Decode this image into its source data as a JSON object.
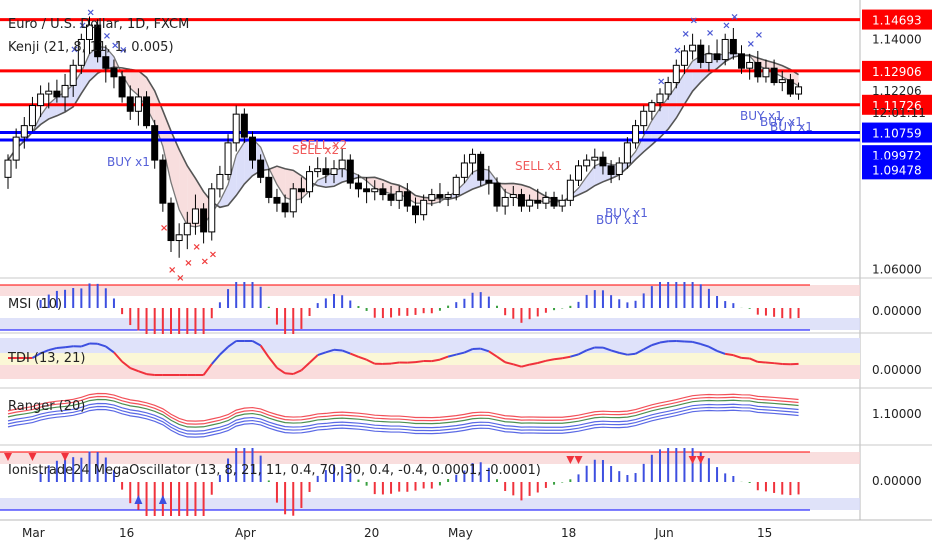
{
  "header": {
    "symbol": "Euro / U.S. Dollar, 1D, FXCM",
    "indicator": "Kenji (21, 8, 11, 1, 0.005)"
  },
  "colors": {
    "bull": "#ffffff",
    "bear": "#000000",
    "red_line": "#ff0000",
    "blue_line": "#0000ff",
    "grey_line": "#787878",
    "green_line": "#2e7d32",
    "cross_blue": "#4b58d4",
    "cross_red": "#ef3b3b",
    "cloud_blue": "#cfd3f7",
    "cloud_red": "#f5d3d3",
    "panel_red": "#f8d6d6",
    "panel_blue": "#d7dbf8",
    "macd_blue": "#3d4fe0",
    "macd_red": "#f0323c",
    "macd_green": "#3aa041"
  },
  "price_axis": {
    "ticks": [
      "1.14000",
      "1.12206",
      "1.06000"
    ],
    "countdown": "12:01:11",
    "levels": [
      {
        "label": "1.14693",
        "color": "red"
      },
      {
        "label": "1.12906",
        "color": "red"
      },
      {
        "label": "1.11726",
        "color": "red"
      },
      {
        "label": "1.10759",
        "color": "blue"
      },
      {
        "label": "1.09972",
        "color": "blue"
      },
      {
        "label": "1.09478",
        "color": "blue"
      }
    ]
  },
  "x_axis": {
    "labels": [
      "Mar",
      "16",
      "Apr",
      "20",
      "May",
      "18",
      "Jun",
      "15"
    ]
  },
  "panels": [
    {
      "title": "MSI (10)",
      "tick": "0.00000"
    },
    {
      "title": "TDI (13, 21)",
      "tick": "0.00000"
    },
    {
      "title": "Ranger (20)",
      "tick": "1.10000"
    },
    {
      "title": "Ionistrade24 MegaOscillator (13, 8, 21, 11, 0.4, 70, 30, 0.4, -0.4, 0.0001, -0.0001)",
      "tick": "0.00000"
    }
  ],
  "signals": [
    "SELL x2",
    "SELL x2",
    "BUY x1",
    "SELL x1",
    "BUY x1",
    "BUY x1",
    "BUY x1",
    "BUY x1",
    "BUY x1"
  ],
  "chart_data": {
    "type": "candlestick",
    "title": "Euro / U.S. Dollar, 1D, FXCM",
    "y_range": [
      1.058,
      1.152
    ],
    "levels": [
      1.14693,
      1.12906,
      1.11726,
      1.10759,
      1.09972,
      1.09478
    ],
    "ohlc": [
      [
        1.092,
        1.1,
        1.088,
        1.098
      ],
      [
        1.098,
        1.109,
        1.095,
        1.106
      ],
      [
        1.106,
        1.113,
        1.102,
        1.11
      ],
      [
        1.11,
        1.12,
        1.108,
        1.117
      ],
      [
        1.117,
        1.124,
        1.113,
        1.121
      ],
      [
        1.121,
        1.125,
        1.116,
        1.122
      ],
      [
        1.122,
        1.126,
        1.118,
        1.12
      ],
      [
        1.12,
        1.128,
        1.115,
        1.124
      ],
      [
        1.124,
        1.133,
        1.12,
        1.131
      ],
      [
        1.131,
        1.142,
        1.128,
        1.14
      ],
      [
        1.14,
        1.148,
        1.135,
        1.145
      ],
      [
        1.145,
        1.147,
        1.132,
        1.134
      ],
      [
        1.134,
        1.138,
        1.125,
        1.13
      ],
      [
        1.13,
        1.133,
        1.123,
        1.127
      ],
      [
        1.127,
        1.129,
        1.118,
        1.12
      ],
      [
        1.12,
        1.124,
        1.112,
        1.115
      ],
      [
        1.115,
        1.123,
        1.11,
        1.12
      ],
      [
        1.12,
        1.122,
        1.109,
        1.11
      ],
      [
        1.11,
        1.112,
        1.095,
        1.098
      ],
      [
        1.098,
        1.1,
        1.08,
        1.083
      ],
      [
        1.083,
        1.085,
        1.066,
        1.07
      ],
      [
        1.07,
        1.076,
        1.064,
        1.072
      ],
      [
        1.072,
        1.08,
        1.067,
        1.076
      ],
      [
        1.076,
        1.086,
        1.072,
        1.081
      ],
      [
        1.081,
        1.083,
        1.069,
        1.073
      ],
      [
        1.073,
        1.09,
        1.07,
        1.088
      ],
      [
        1.088,
        1.096,
        1.085,
        1.093
      ],
      [
        1.093,
        1.107,
        1.091,
        1.104
      ],
      [
        1.104,
        1.117,
        1.101,
        1.114
      ],
      [
        1.114,
        1.116,
        1.104,
        1.106
      ],
      [
        1.106,
        1.108,
        1.095,
        1.098
      ],
      [
        1.098,
        1.1,
        1.09,
        1.092
      ],
      [
        1.092,
        1.095,
        1.083,
        1.085
      ],
      [
        1.085,
        1.088,
        1.08,
        1.083
      ],
      [
        1.083,
        1.086,
        1.078,
        1.08
      ],
      [
        1.08,
        1.09,
        1.078,
        1.088
      ],
      [
        1.088,
        1.092,
        1.083,
        1.087
      ],
      [
        1.087,
        1.096,
        1.085,
        1.094
      ],
      [
        1.094,
        1.099,
        1.092,
        1.095
      ],
      [
        1.095,
        1.099,
        1.09,
        1.093
      ],
      [
        1.093,
        1.098,
        1.09,
        1.095
      ],
      [
        1.095,
        1.102,
        1.092,
        1.098
      ],
      [
        1.098,
        1.1,
        1.088,
        1.09
      ],
      [
        1.09,
        1.093,
        1.085,
        1.088
      ],
      [
        1.088,
        1.092,
        1.083,
        1.087
      ],
      [
        1.087,
        1.091,
        1.084,
        1.088
      ],
      [
        1.088,
        1.09,
        1.084,
        1.086
      ],
      [
        1.086,
        1.089,
        1.082,
        1.084
      ],
      [
        1.084,
        1.089,
        1.081,
        1.087
      ],
      [
        1.087,
        1.09,
        1.08,
        1.082
      ],
      [
        1.082,
        1.085,
        1.076,
        1.079
      ],
      [
        1.079,
        1.086,
        1.077,
        1.084
      ],
      [
        1.084,
        1.088,
        1.082,
        1.086
      ],
      [
        1.086,
        1.09,
        1.083,
        1.085
      ],
      [
        1.085,
        1.087,
        1.082,
        1.086
      ],
      [
        1.086,
        1.093,
        1.084,
        1.092
      ],
      [
        1.092,
        1.1,
        1.09,
        1.097
      ],
      [
        1.097,
        1.102,
        1.093,
        1.1
      ],
      [
        1.1,
        1.101,
        1.089,
        1.091
      ],
      [
        1.091,
        1.096,
        1.086,
        1.09
      ],
      [
        1.09,
        1.092,
        1.08,
        1.082
      ],
      [
        1.082,
        1.088,
        1.079,
        1.085
      ],
      [
        1.085,
        1.089,
        1.082,
        1.086
      ],
      [
        1.086,
        1.088,
        1.08,
        1.082
      ],
      [
        1.082,
        1.086,
        1.08,
        1.084
      ],
      [
        1.084,
        1.088,
        1.081,
        1.083
      ],
      [
        1.083,
        1.087,
        1.081,
        1.085
      ],
      [
        1.085,
        1.087,
        1.081,
        1.082
      ],
      [
        1.082,
        1.086,
        1.08,
        1.084
      ],
      [
        1.084,
        1.093,
        1.082,
        1.091
      ],
      [
        1.091,
        1.098,
        1.089,
        1.096
      ],
      [
        1.096,
        1.1,
        1.094,
        1.098
      ],
      [
        1.098,
        1.102,
        1.095,
        1.099
      ],
      [
        1.099,
        1.101,
        1.093,
        1.096
      ],
      [
        1.096,
        1.098,
        1.09,
        1.093
      ],
      [
        1.093,
        1.099,
        1.091,
        1.097
      ],
      [
        1.097,
        1.106,
        1.095,
        1.104
      ],
      [
        1.104,
        1.112,
        1.102,
        1.11
      ],
      [
        1.11,
        1.117,
        1.107,
        1.115
      ],
      [
        1.115,
        1.119,
        1.112,
        1.118
      ],
      [
        1.118,
        1.123,
        1.115,
        1.121
      ],
      [
        1.121,
        1.127,
        1.119,
        1.125
      ],
      [
        1.125,
        1.133,
        1.123,
        1.131
      ],
      [
        1.131,
        1.138,
        1.128,
        1.136
      ],
      [
        1.136,
        1.142,
        1.133,
        1.138
      ],
      [
        1.138,
        1.14,
        1.13,
        1.132
      ],
      [
        1.132,
        1.138,
        1.129,
        1.135
      ],
      [
        1.135,
        1.14,
        1.132,
        1.133
      ],
      [
        1.133,
        1.142,
        1.131,
        1.14
      ],
      [
        1.14,
        1.144,
        1.133,
        1.135
      ],
      [
        1.135,
        1.138,
        1.128,
        1.13
      ],
      [
        1.13,
        1.135,
        1.126,
        1.132
      ],
      [
        1.132,
        1.136,
        1.125,
        1.127
      ],
      [
        1.127,
        1.133,
        1.125,
        1.13
      ],
      [
        1.13,
        1.133,
        1.124,
        1.125
      ],
      [
        1.125,
        1.129,
        1.122,
        1.126
      ],
      [
        1.126,
        1.128,
        1.12,
        1.121
      ],
      [
        1.121,
        1.125,
        1.119,
        1.1235
      ]
    ]
  }
}
